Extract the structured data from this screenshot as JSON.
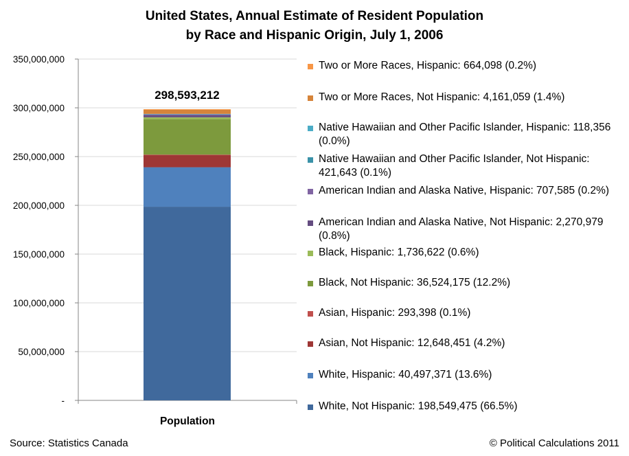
{
  "chart_data": {
    "type": "bar",
    "stacked": true,
    "title": [
      "United States, Annual Estimate of Resident Population",
      "by Race and Hispanic Origin, July 1, 2006"
    ],
    "categories": [
      "Population"
    ],
    "total_label": "298,593,212",
    "ylim": [
      0,
      350000000
    ],
    "ytick_values": [
      0,
      50000000,
      100000000,
      150000000,
      200000000,
      250000000,
      300000000,
      350000000
    ],
    "ytick_labels": [
      "-",
      "50,000,000",
      "100,000,000",
      "150,000,000",
      "200,000,000",
      "250,000,000",
      "300,000,000",
      "350,000,000"
    ],
    "grid": true,
    "legend_position": "right",
    "series": [
      {
        "name": "White, Not Hispanic",
        "value": 198549475,
        "legend_label": "White, Not Hispanic: 198,549,475 (66.5%)",
        "color": "#40699c"
      },
      {
        "name": "White, Hispanic",
        "value": 40497371,
        "legend_label": "White, Hispanic: 40,497,371 (13.6%)",
        "color": "#4f81bd"
      },
      {
        "name": "Asian, Not Hispanic",
        "value": 12648451,
        "legend_label": "Asian, Not Hispanic: 12,648,451 (4.2%)",
        "color": "#9e3735"
      },
      {
        "name": "Asian, Hispanic",
        "value": 293398,
        "legend_label": "Asian, Hispanic: 293,398 (0.1%)",
        "color": "#c0504d"
      },
      {
        "name": "Black, Not Hispanic",
        "value": 36524175,
        "legend_label": "Black, Not Hispanic: 36,524,175 (12.2%)",
        "color": "#7d9a3d"
      },
      {
        "name": "Black, Hispanic",
        "value": 1736622,
        "legend_label": "Black, Hispanic: 1,736,622 (0.6%)",
        "color": "#9bbb59"
      },
      {
        "name": "American Indian and Alaska Native, Not Hispanic",
        "value": 2270979,
        "legend_label": "American Indian and Alaska Native, Not Hispanic: 2,270,979 (0.8%)",
        "color": "#644c80"
      },
      {
        "name": "American Indian and Alaska Native, Hispanic",
        "value": 707585,
        "legend_label": "American Indian and Alaska Native, Hispanic: 707,585 (0.2%)",
        "color": "#8064a2"
      },
      {
        "name": "Native Hawaiian and Other Pacific Islander, Not Hispanic",
        "value": 421643,
        "legend_label": "Native Hawaiian and Other Pacific Islander, Not Hispanic: 421,643 (0.1%)",
        "color": "#3a92a8"
      },
      {
        "name": "Native Hawaiian and Other Pacific Islander, Hispanic",
        "value": 118356,
        "legend_label": "Native Hawaiian and Other Pacific Islander, Hispanic: 118,356 (0.0%)",
        "color": "#4bacc6"
      },
      {
        "name": "Two or More Races, Not Hispanic",
        "value": 4161059,
        "legend_label": "Two or More Races, Not Hispanic: 4,161,059 (1.4%)",
        "color": "#d6843a"
      },
      {
        "name": "Two or More Races, Hispanic",
        "value": 664098,
        "legend_label": "Two or More Races, Hispanic: 664,098 (0.2%)",
        "color": "#f79646"
      }
    ]
  },
  "footer": {
    "source": "Source: Statistics Canada",
    "copyright": "© Political Calculations 2011"
  }
}
